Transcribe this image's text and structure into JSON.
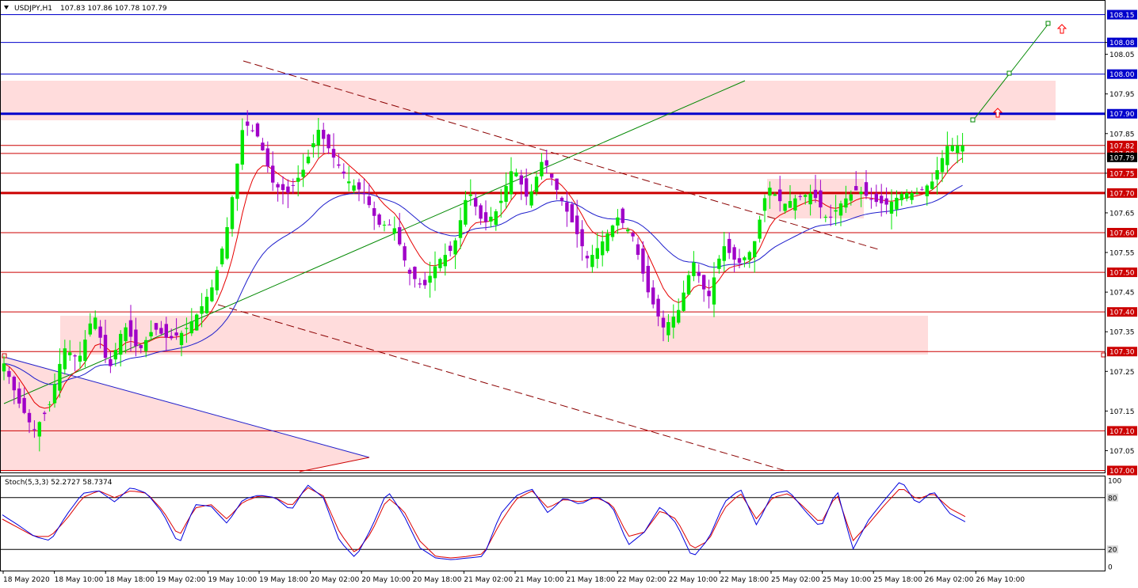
{
  "header": {
    "symbol_tf": "USDJPY,H1",
    "ohlc": "107.83 107.86 107.78 107.79"
  },
  "stoch_header": "Stoch(5,3,3) 52.2727 58.7374",
  "colors": {
    "bull": "#00e600",
    "bear": "#a000c8",
    "ma_fast": "#e60000",
    "ma_slow": "#1e1ecc",
    "hline_red": "#cc0000",
    "hline_blue": "#0000cc",
    "zone": "#ffdcdc",
    "trend_green": "#008800",
    "trend_dashed": "#8b0000",
    "stoch_main": "#0000dd",
    "stoch_signal": "#dd0000"
  },
  "chart_data": {
    "type": "candlestick",
    "symbol": "USDJPY",
    "timeframe": "H1",
    "y_range": [
      106.995,
      108.185
    ],
    "current_price": "107.79",
    "price_ticks": [
      "108.08",
      "108.05",
      "107.95",
      "107.85",
      "107.75",
      "107.65",
      "107.55",
      "107.45",
      "107.35",
      "107.25",
      "107.15",
      "107.05"
    ],
    "blue_levels": [
      "108.15",
      "108.08",
      "108.00",
      "107.90"
    ],
    "red_levels": [
      "107.82",
      "107.80",
      "107.75",
      "107.70",
      "107.60",
      "107.50",
      "107.40",
      "107.30",
      "107.10",
      "107.00"
    ],
    "x_labels": [
      "18 May 2020",
      "18 May 10:00",
      "18 May 18:00",
      "19 May 02:00",
      "19 May 10:00",
      "19 May 18:00",
      "20 May 02:00",
      "20 May 10:00",
      "20 May 18:00",
      "21 May 02:00",
      "21 May 10:00",
      "21 May 18:00",
      "22 May 02:00",
      "22 May 10:00",
      "22 May 18:00",
      "25 May 02:00",
      "25 May 10:00",
      "25 May 18:00",
      "26 May 02:00",
      "26 May 10:00"
    ],
    "close_anchors": [
      107.27,
      107.17,
      107.1,
      107.16,
      107.31,
      107.28,
      107.4,
      107.25,
      107.37,
      107.3,
      107.36,
      107.33,
      107.35,
      107.4,
      107.47,
      107.63,
      107.88,
      107.84,
      107.72,
      107.7,
      107.76,
      107.86,
      107.79,
      107.73,
      107.7,
      107.62,
      107.62,
      107.5,
      107.46,
      107.53,
      107.56,
      107.71,
      107.62,
      107.66,
      107.77,
      107.68,
      107.79,
      107.7,
      107.62,
      107.53,
      107.58,
      107.64,
      107.59,
      107.45,
      107.36,
      107.4,
      107.53,
      107.43,
      107.57,
      107.52,
      107.56,
      107.72,
      107.67,
      107.69,
      107.7,
      107.63,
      107.68,
      107.71,
      107.68,
      107.67,
      107.7,
      107.7,
      107.73,
      107.82,
      107.82
    ],
    "stoch_main_anchors": [
      60,
      48,
      35,
      30,
      60,
      85,
      88,
      75,
      92,
      85,
      62,
      25,
      72,
      70,
      50,
      78,
      83,
      80,
      65,
      95,
      80,
      30,
      10,
      45,
      88,
      60,
      22,
      10,
      8,
      10,
      12,
      60,
      82,
      90,
      62,
      80,
      72,
      82,
      70,
      25,
      40,
      70,
      50,
      10,
      32,
      75,
      90,
      48,
      85,
      88,
      65,
      45,
      90,
      20,
      55,
      78,
      100,
      72,
      88,
      62,
      52
    ],
    "stoch_signal_anchors": [
      55,
      45,
      35,
      35,
      55,
      80,
      88,
      80,
      88,
      85,
      65,
      35,
      68,
      72,
      55,
      75,
      82,
      80,
      70,
      92,
      82,
      40,
      15,
      40,
      80,
      65,
      30,
      12,
      10,
      12,
      15,
      50,
      78,
      88,
      68,
      78,
      75,
      80,
      72,
      35,
      40,
      65,
      55,
      20,
      30,
      68,
      85,
      55,
      80,
      85,
      68,
      50,
      85,
      30,
      50,
      72,
      92,
      78,
      85,
      68,
      58
    ],
    "stoch_levels": [
      "100",
      "80",
      "20",
      "0"
    ],
    "stoch_k": 52.2727,
    "stoch_d": 58.7374
  }
}
